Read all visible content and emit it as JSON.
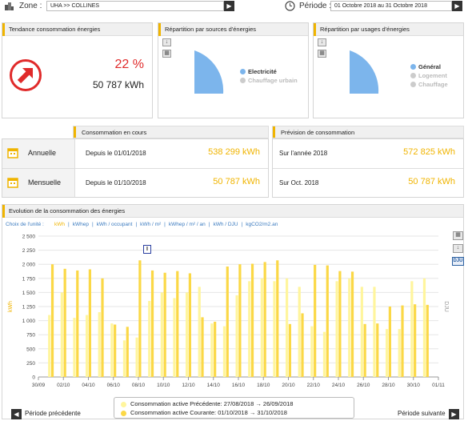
{
  "zone": {
    "label": "Zone :",
    "value": "UHA >> COLLINES"
  },
  "periode": {
    "label": "Période :",
    "value": "01 Octobre 2018 au 31 Octobre 2018"
  },
  "tendance": {
    "title": "Tendance consommation énergies",
    "percent": "22 %",
    "value": "50 787 kWh"
  },
  "sources": {
    "title": "Répartition par sources d'énergies",
    "legend": [
      {
        "label": "Electricité",
        "color": "#7cb5ec",
        "active": true
      },
      {
        "label": "Chauffage urbain",
        "color": "#cccccc",
        "active": false
      }
    ]
  },
  "usages": {
    "title": "Répartition par usages d'énergies",
    "legend": [
      {
        "label": "Général",
        "color": "#7cb5ec",
        "active": true
      },
      {
        "label": "Logement",
        "color": "#cccccc",
        "active": false
      },
      {
        "label": "Chauffage",
        "color": "#cccccc",
        "active": false
      }
    ]
  },
  "consommation": {
    "title": "Consommation en cours",
    "rows": [
      {
        "label": "Annuelle",
        "since": "Depuis le 01/01/2018",
        "value": "538 299 kWh"
      },
      {
        "label": "Mensuelle",
        "since": "Depuis le 01/10/2018",
        "value": "50 787 kWh"
      }
    ]
  },
  "prevision": {
    "title": "Prévision de consommation",
    "rows": [
      {
        "label": "Sur l'année 2018",
        "value": "572 825 kWh"
      },
      {
        "label": "Sur Oct. 2018",
        "value": "50 787 kWh"
      }
    ]
  },
  "evolution": {
    "title": "Evolution de la consommation des énergies",
    "unit_label": "Choix de l'unité :",
    "units": [
      "kWh",
      "kWhep",
      "kWh / occupant",
      "kWh / m²",
      "kWhep / m² / an",
      "kWh / DJU",
      "kgCO2/m2.an"
    ],
    "active_unit": "kWh",
    "dju_button": "DJU",
    "marker": "I",
    "prev_label": "Période précédente",
    "next_label": "Période suivante"
  },
  "chart_data": {
    "type": "bar",
    "ylabel": "kWh",
    "y2label": "DJU",
    "ylim": [
      0,
      2500
    ],
    "yticks": [
      0,
      250,
      500,
      750,
      1000,
      1250,
      1500,
      1750,
      2000,
      2250,
      2500
    ],
    "xticks": [
      "30/09",
      "02/10",
      "04/10",
      "06/10",
      "08/10",
      "10/10",
      "12/10",
      "14/10",
      "16/10",
      "18/10",
      "20/10",
      "22/10",
      "24/10",
      "26/10",
      "28/10",
      "30/10",
      "01/11"
    ],
    "series": [
      {
        "name": "Consommation active Précédente: 27/08/2018 → 26/09/2018",
        "color": "#fff59d",
        "values": [
          1100,
          1500,
          1050,
          1100,
          1150,
          950,
          650,
          700,
          1350,
          1500,
          1400,
          1500,
          1600,
          950,
          900,
          1450,
          1700,
          1750,
          1700,
          1750,
          1600,
          900,
          800,
          1700,
          1750,
          1600,
          1600,
          850,
          850,
          1700,
          1750
        ]
      },
      {
        "name": "Consommation active Courante: 01/10/2018 → 31/10/2018",
        "color": "#fbd846",
        "values": [
          2000,
          1920,
          1890,
          1910,
          1750,
          930,
          890,
          2070,
          1890,
          1850,
          1880,
          1840,
          1060,
          980,
          1960,
          2000,
          2010,
          2040,
          2070,
          940,
          1130,
          1990,
          1980,
          1880,
          1870,
          940,
          950,
          1250,
          1270,
          1290,
          1280
        ]
      }
    ],
    "legend_position": "bottom"
  }
}
